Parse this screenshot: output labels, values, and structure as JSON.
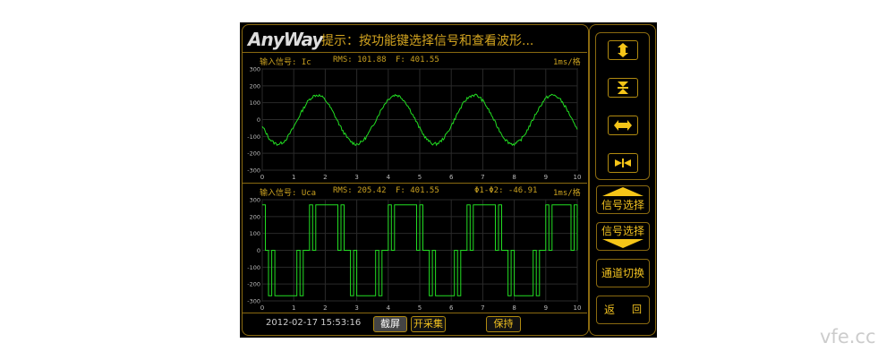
{
  "header": {
    "logo": "AnyWay",
    "hint": "提示：按功能键选择信号和查看波形..."
  },
  "panel1": {
    "signal": "输入信号: Ic",
    "rms": "RMS: 101.88",
    "freq": "F: 401.55",
    "timebase": "1ms/格"
  },
  "panel2": {
    "signal": "输入信号: Uca",
    "rms": "RMS: 205.42",
    "freq": "F: 401.55",
    "phase": "Φ1-Φ2: -46.91",
    "timebase": "1ms/格"
  },
  "footer": {
    "datetime": "2012-02-17 15:53:16",
    "screenshot": "截屏",
    "start_capture": "开采集",
    "hold": "保持"
  },
  "side": {
    "buttons": [
      {
        "icon": "expand-vertical-icon"
      },
      {
        "icon": "compress-vertical-icon"
      },
      {
        "icon": "expand-horizontal-icon"
      },
      {
        "icon": "compress-horizontal-icon"
      }
    ],
    "signal_up": "信号选择",
    "signal_down": "信号选择",
    "channel_switch": "通道切换",
    "back": "返",
    "back_icon": "回"
  },
  "watermark": "vfe.cc",
  "colors": {
    "accent": "#f0c020",
    "trace": "#22dd22",
    "border": "#8a6a10"
  },
  "chart_data": [
    {
      "type": "line",
      "series": [
        {
          "name": "Ic",
          "x_step": 0.25,
          "values": [
            -45,
            -118,
            -145,
            -117,
            -43,
            46,
            119,
            145,
            116,
            42,
            -48,
            -119,
            -145,
            -115,
            -41,
            49,
            120,
            145,
            114,
            38,
            -52,
            -122,
            -145,
            -112,
            -37,
            53,
            123,
            145,
            111,
            35,
            -55,
            -124,
            -145,
            -110,
            -33,
            56,
            125,
            144,
            109,
            32,
            -59
          ]
        }
      ],
      "xlim": [
        0,
        10
      ],
      "ylim": [
        -300,
        300
      ],
      "xticks": [
        "0",
        "1",
        "2",
        "3",
        "4",
        "5",
        "6",
        "7",
        "8",
        "9",
        "10"
      ],
      "yticks": [
        "300",
        "200",
        "100",
        "0",
        "-100",
        "-200",
        "-300"
      ],
      "grid": true
    },
    {
      "type": "line",
      "series": [
        {
          "name": "Uca",
          "x_step": 0.1,
          "values": [
            270,
            0,
            -270,
            0,
            -270,
            -270,
            -270,
            -270,
            -270,
            -270,
            -270,
            0,
            -270,
            0,
            0,
            270,
            0,
            270,
            270,
            270,
            270,
            270,
            270,
            270,
            0,
            270,
            0,
            0,
            -270,
            0,
            -270,
            -270,
            -270,
            -270,
            -270,
            -270,
            0,
            -270,
            0,
            0,
            270,
            0,
            270,
            270,
            270,
            270,
            270,
            270,
            270,
            0,
            270,
            0,
            0,
            -270,
            0,
            -270,
            -270,
            -270,
            -270,
            -270,
            -270,
            0,
            -270,
            0,
            0,
            270,
            0,
            270,
            270,
            270,
            270,
            270,
            270,
            270,
            0,
            270,
            0,
            0,
            -270,
            0,
            -270,
            -270,
            -270,
            -270,
            -270,
            -270,
            0,
            -270,
            0,
            0,
            270,
            0,
            270,
            270,
            270,
            270,
            270,
            270,
            0,
            270,
            0
          ]
        }
      ],
      "xlim": [
        0,
        10
      ],
      "ylim": [
        -300,
        300
      ],
      "xticks": [
        "0",
        "1",
        "2",
        "3",
        "4",
        "5",
        "6",
        "7",
        "8",
        "9",
        "10"
      ],
      "yticks": [
        "300",
        "200",
        "100",
        "0",
        "-100",
        "-200",
        "-300"
      ],
      "grid": true
    }
  ]
}
